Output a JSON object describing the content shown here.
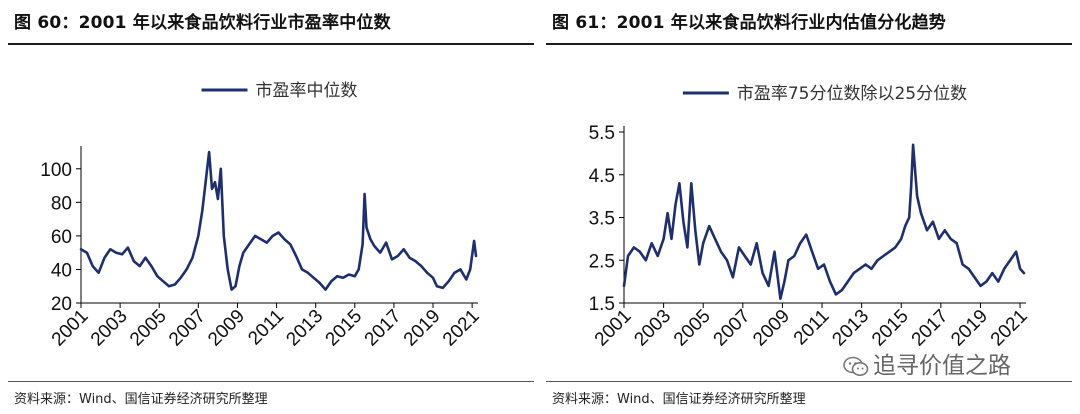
{
  "figures": [
    {
      "title": "图 60：2001 年以来食品饮料行业市盈率中位数",
      "source": "资料来源：Wind、国信证券经济研究所整理"
    },
    {
      "title": "图 61：2001 年以来食品饮料行业内估值分化趋势",
      "source": "资料来源：Wind、国信证券经济研究所整理"
    }
  ],
  "watermark": {
    "text": "追寻价值之路",
    "icon": "wechat-icon"
  },
  "colors": {
    "series": "#1F2F6E",
    "axis": "#000000"
  },
  "chart_data": [
    {
      "type": "line",
      "legend": "市盈率中位数",
      "legend_position": "top-center",
      "grid": false,
      "xlim": [
        2001,
        2021.3
      ],
      "ylim": [
        20,
        110
      ],
      "yticks": [
        20,
        40,
        60,
        80,
        100
      ],
      "xticks": [
        "2001",
        "2003",
        "2005",
        "2007",
        "2009",
        "2011",
        "2013",
        "2015",
        "2017",
        "2019",
        "2021"
      ],
      "series": [
        {
          "x": [
            2001.0,
            2001.3,
            2001.6,
            2001.9,
            2002.2,
            2002.5,
            2002.8,
            2003.1,
            2003.4,
            2003.7,
            2004.0,
            2004.3,
            2004.6,
            2004.9,
            2005.2,
            2005.5,
            2005.8,
            2006.1,
            2006.4,
            2006.7,
            2007.0,
            2007.2,
            2007.4,
            2007.55,
            2007.7,
            2007.85,
            2008.0,
            2008.15,
            2008.3,
            2008.5,
            2008.7,
            2008.9,
            2009.1,
            2009.3,
            2009.6,
            2009.9,
            2010.2,
            2010.5,
            2010.8,
            2011.1,
            2011.4,
            2011.7,
            2012.0,
            2012.3,
            2012.6,
            2012.9,
            2013.2,
            2013.5,
            2013.8,
            2014.1,
            2014.4,
            2014.7,
            2015.0,
            2015.2,
            2015.4,
            2015.5,
            2015.6,
            2015.8,
            2016.0,
            2016.3,
            2016.6,
            2016.9,
            2017.2,
            2017.5,
            2017.8,
            2018.1,
            2018.4,
            2018.7,
            2019.0,
            2019.2,
            2019.5,
            2019.8,
            2020.1,
            2020.4,
            2020.7,
            2020.9,
            2021.1,
            2021.2
          ],
          "y": [
            52,
            50,
            42,
            38,
            47,
            52,
            50,
            49,
            53,
            45,
            42,
            47,
            42,
            36,
            33,
            30,
            31,
            35,
            40,
            47,
            60,
            75,
            95,
            110,
            88,
            92,
            82,
            100,
            60,
            40,
            28,
            30,
            42,
            50,
            55,
            60,
            58,
            56,
            60,
            62,
            58,
            55,
            48,
            40,
            38,
            35,
            32,
            28,
            33,
            36,
            35,
            37,
            36,
            40,
            55,
            85,
            65,
            58,
            54,
            50,
            56,
            46,
            48,
            52,
            47,
            45,
            42,
            38,
            35,
            30,
            29,
            33,
            38,
            40,
            34,
            40,
            57,
            48
          ]
        }
      ]
    },
    {
      "type": "line",
      "legend": "市盈率75分位数除以25分位数",
      "legend_position": "top-center",
      "grid": false,
      "xlim": [
        2001,
        2021.3
      ],
      "ylim": [
        1.5,
        5.5
      ],
      "yticks": [
        1.5,
        2.5,
        3.5,
        4.5,
        5.5
      ],
      "xticks": [
        "2001",
        "2003",
        "2005",
        "2007",
        "2009",
        "2011",
        "2013",
        "2015",
        "2017",
        "2019",
        "2021"
      ],
      "series": [
        {
          "x": [
            2001.0,
            2001.2,
            2001.5,
            2001.8,
            2002.1,
            2002.4,
            2002.7,
            2003.0,
            2003.2,
            2003.4,
            2003.6,
            2003.8,
            2004.0,
            2004.2,
            2004.4,
            2004.6,
            2004.8,
            2005.0,
            2005.3,
            2005.6,
            2005.9,
            2006.2,
            2006.5,
            2006.8,
            2007.1,
            2007.4,
            2007.7,
            2008.0,
            2008.3,
            2008.6,
            2008.9,
            2009.1,
            2009.3,
            2009.6,
            2009.9,
            2010.2,
            2010.5,
            2010.8,
            2011.1,
            2011.4,
            2011.7,
            2012.0,
            2012.3,
            2012.6,
            2012.9,
            2013.2,
            2013.5,
            2013.8,
            2014.1,
            2014.4,
            2014.7,
            2015.0,
            2015.2,
            2015.4,
            2015.5,
            2015.6,
            2015.8,
            2016.0,
            2016.3,
            2016.6,
            2016.9,
            2017.2,
            2017.5,
            2017.8,
            2018.1,
            2018.4,
            2018.7,
            2019.0,
            2019.3,
            2019.6,
            2019.9,
            2020.2,
            2020.5,
            2020.8,
            2021.0,
            2021.2
          ],
          "y": [
            1.9,
            2.6,
            2.8,
            2.7,
            2.5,
            2.9,
            2.6,
            3.0,
            3.6,
            3.0,
            3.8,
            4.3,
            3.4,
            2.8,
            4.3,
            3.2,
            2.4,
            2.9,
            3.3,
            3.0,
            2.7,
            2.5,
            2.1,
            2.8,
            2.6,
            2.4,
            2.9,
            2.2,
            1.9,
            2.7,
            1.6,
            2.0,
            2.5,
            2.6,
            2.9,
            3.1,
            2.7,
            2.3,
            2.4,
            2.0,
            1.7,
            1.8,
            2.0,
            2.2,
            2.3,
            2.4,
            2.3,
            2.5,
            2.6,
            2.7,
            2.8,
            3.0,
            3.3,
            3.5,
            4.2,
            5.2,
            4.0,
            3.6,
            3.2,
            3.4,
            3.0,
            3.2,
            3.0,
            2.9,
            2.4,
            2.3,
            2.1,
            1.9,
            2.0,
            2.2,
            2.0,
            2.3,
            2.5,
            2.7,
            2.3,
            2.2
          ]
        }
      ]
    }
  ]
}
